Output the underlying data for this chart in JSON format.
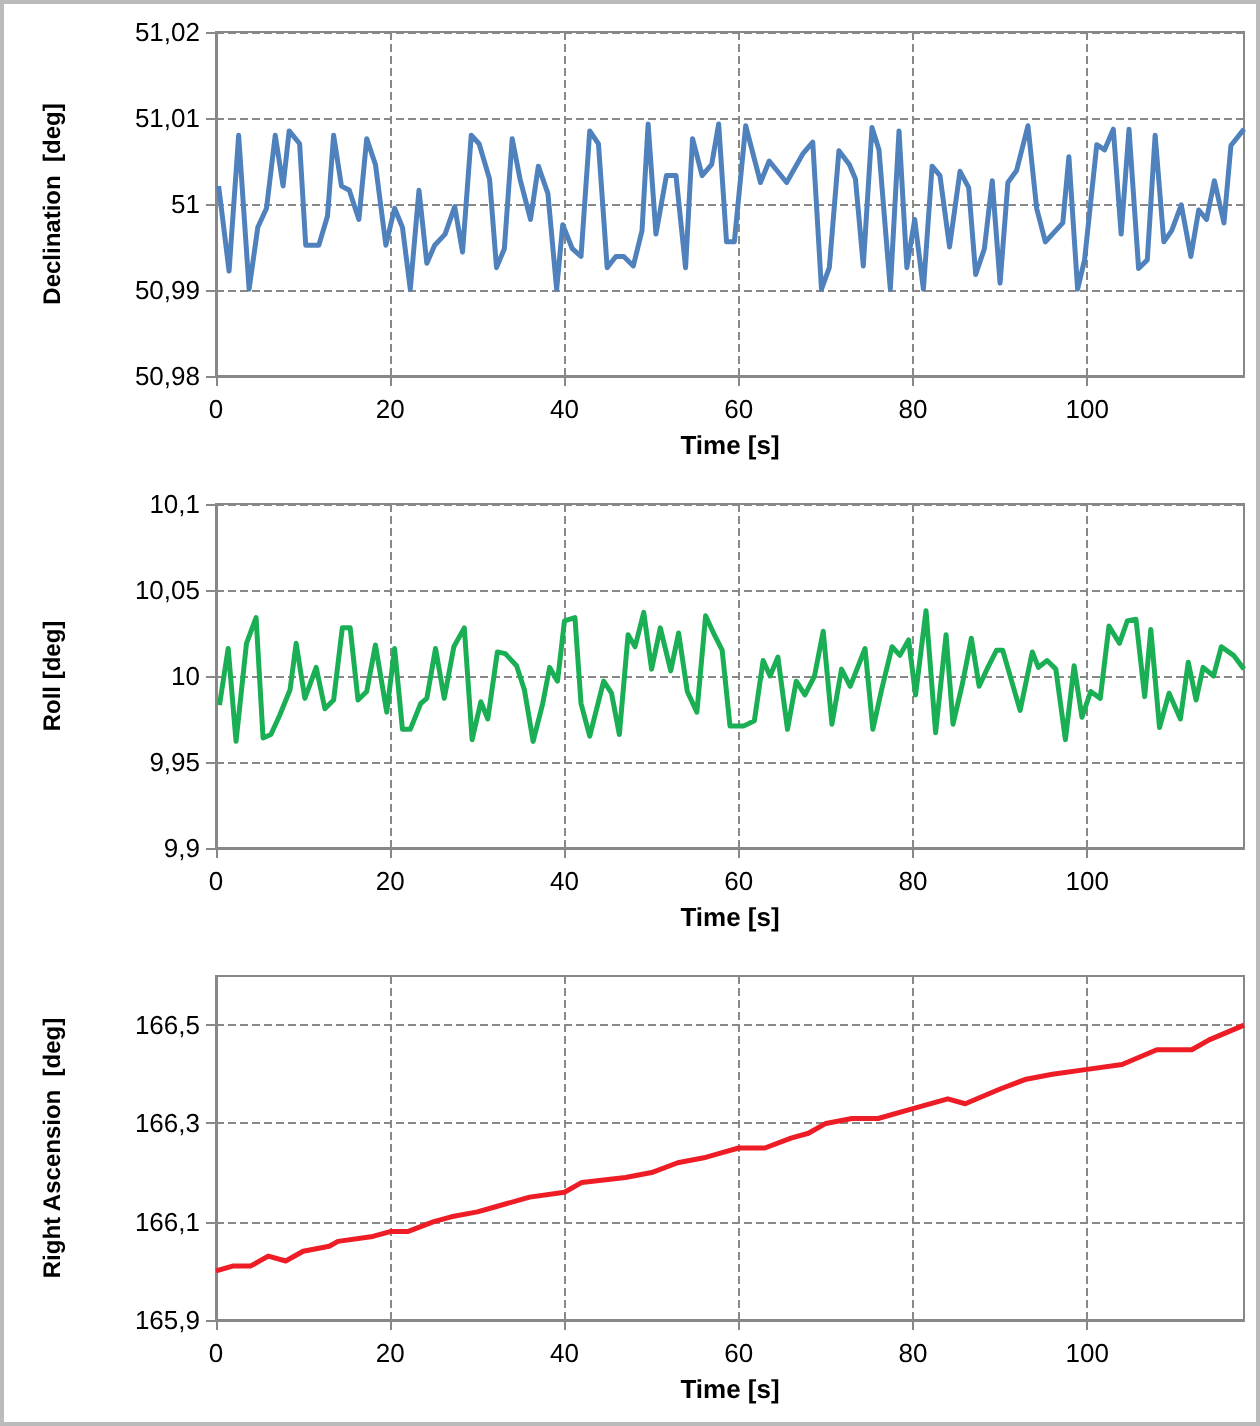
{
  "chart_data": [
    {
      "type": "line",
      "xlabel": "Time [s]",
      "ylabel": "Declination  [deg]",
      "grid": true,
      "marker": "none",
      "xlim": [
        0,
        118
      ],
      "xticks": [
        0,
        20,
        40,
        60,
        80,
        100
      ],
      "ylim": [
        50.98,
        51.02
      ],
      "yticks": [
        {
          "value": 50.98,
          "label": "50,98"
        },
        {
          "value": 50.99,
          "label": "50,99"
        },
        {
          "value": 51,
          "label": "51"
        },
        {
          "value": 51.01,
          "label": "51,01"
        },
        {
          "value": 51.02,
          "label": "51,02"
        }
      ],
      "x": [
        0.3,
        1.5,
        2.6,
        3.8,
        4.8,
        5.8,
        6.8,
        7.7,
        8.4,
        9.6,
        10.3,
        11.8,
        12.8,
        13.5,
        14.4,
        15.3,
        16.4,
        17.3,
        18.3,
        19.5,
        20.5,
        21.4,
        22.3,
        23.3,
        24.2,
        25.1,
        26.3,
        27.4,
        28.3,
        29.3,
        30.2,
        31.4,
        32.2,
        33.1,
        34.0,
        34.9,
        36.1,
        37.0,
        38.1,
        39.1,
        39.8,
        40.9,
        41.9,
        42.9,
        43.9,
        44.9,
        45.9,
        46.8,
        47.9,
        48.9,
        49.6,
        50.5,
        51.7,
        52.8,
        53.9,
        54.7,
        55.8,
        56.9,
        57.7,
        58.6,
        59.5,
        60.8,
        62.5,
        63.5,
        65.5,
        67.4,
        68.5,
        69.5,
        70.4,
        71.5,
        72.7,
        73.4,
        74.3,
        75.3,
        76.1,
        77.4,
        78.4,
        79.3,
        80.2,
        81.2,
        82.2,
        83.1,
        84.2,
        85.4,
        86.4,
        87.2,
        88.2,
        89.1,
        90.0,
        90.9,
        91.9,
        93.2,
        94.2,
        95.2,
        97.2,
        97.9,
        98.9,
        99.7,
        101.1,
        102.0,
        103.0,
        103.9,
        104.8,
        105.9,
        106.9,
        107.8,
        108.8,
        109.7,
        110.8,
        111.9,
        112.8,
        113.7,
        114.6,
        115.7,
        116.5,
        118.0
      ],
      "series": [
        {
          "color": "#4f81bd",
          "values": [
            51.0021,
            50.9922,
            51.008,
            50.9901,
            50.9973,
            50.9995,
            51.008,
            51.0021,
            51.0085,
            51.007,
            50.9952,
            50.9952,
            50.9986,
            51.008,
            51.0021,
            51.0016,
            50.9982,
            51.0076,
            51.0046,
            50.9952,
            50.9995,
            50.9973,
            50.9901,
            51.0016,
            50.9931,
            50.9952,
            50.9965,
            50.9997,
            50.9944,
            51.008,
            51.007,
            51.0029,
            50.9926,
            50.9948,
            51.0076,
            51.0029,
            50.9982,
            51.0044,
            51.0012,
            50.9901,
            50.9976,
            50.9948,
            50.9939,
            51.0085,
            51.007,
            50.9926,
            50.9939,
            50.9939,
            50.9928,
            50.9969,
            51.0093,
            50.9965,
            51.0033,
            51.0033,
            50.9926,
            51.0076,
            51.0033,
            51.0046,
            51.0093,
            50.9956,
            50.9956,
            51.0091,
            51.0025,
            51.005,
            51.0025,
            51.0059,
            51.0072,
            50.9901,
            50.9926,
            51.0062,
            51.0046,
            51.0029,
            50.9928,
            51.0089,
            51.0063,
            50.9901,
            51.0085,
            50.9926,
            50.9982,
            50.9901,
            51.0044,
            51.0033,
            50.995,
            51.0038,
            51.0019,
            50.9918,
            50.9948,
            51.0027,
            50.9908,
            51.0025,
            51.0039,
            51.0091,
            50.9995,
            50.9956,
            50.9978,
            51.0055,
            50.9901,
            50.9935,
            51.0069,
            51.0063,
            51.0087,
            50.9965,
            51.0087,
            50.9925,
            50.9935,
            51.008,
            50.9956,
            50.9969,
            50.9999,
            50.9939,
            50.9993,
            50.9982,
            51.0027,
            50.9978,
            51.0068,
            51.0087
          ]
        }
      ]
    },
    {
      "type": "line",
      "xlabel": "Time [s]",
      "ylabel": "Roll [deg]",
      "grid": true,
      "marker": "none",
      "xlim": [
        0,
        118
      ],
      "xticks": [
        0,
        20,
        40,
        60,
        80,
        100
      ],
      "ylim": [
        9.9,
        10.1
      ],
      "yticks": [
        {
          "value": 9.9,
          "label": "9,9"
        },
        {
          "value": 9.95,
          "label": "9,95"
        },
        {
          "value": 10,
          "label": "10"
        },
        {
          "value": 10.05,
          "label": "10,05"
        },
        {
          "value": 10.1,
          "label": "10,1"
        }
      ],
      "x": [
        0.4,
        1.4,
        2.3,
        3.5,
        4.6,
        5.4,
        6.3,
        7.3,
        8.5,
        9.2,
        10.2,
        11.5,
        12.5,
        13.5,
        14.5,
        15.4,
        16.3,
        17.3,
        18.3,
        19.6,
        20.5,
        21.4,
        22.3,
        23.5,
        24.2,
        25.2,
        26.2,
        27.3,
        28.5,
        29.4,
        30.4,
        31.2,
        32.3,
        33.2,
        34.5,
        35.4,
        36.4,
        37.5,
        38.3,
        39.2,
        40.0,
        41.2,
        41.9,
        42.9,
        44.5,
        45.4,
        46.3,
        47.3,
        48.1,
        49.1,
        50.0,
        51.0,
        52.2,
        53.1,
        54.1,
        55.2,
        56.2,
        57.2,
        58.1,
        59.0,
        60.6,
        61.8,
        62.8,
        63.6,
        64.5,
        65.6,
        66.6,
        67.6,
        68.7,
        69.7,
        70.7,
        71.8,
        72.8,
        74.5,
        75.4,
        76.4,
        77.6,
        78.5,
        79.5,
        80.3,
        81.5,
        82.6,
        83.8,
        84.6,
        85.7,
        86.7,
        87.6,
        88.6,
        89.6,
        90.3,
        92.3,
        93.7,
        94.4,
        95.4,
        96.4,
        97.5,
        98.5,
        99.4,
        100.4,
        101.5,
        102.5,
        103.7,
        104.6,
        105.6,
        106.6,
        107.3,
        108.3,
        109.4,
        110.7,
        111.6,
        112.5,
        113.3,
        114.5,
        115.4,
        116.8,
        118.0
      ],
      "series": [
        {
          "color": "#1aaf54",
          "values": [
            9.983,
            10.016,
            9.962,
            10.019,
            10.034,
            9.964,
            9.966,
            9.977,
            9.992,
            10.019,
            9.987,
            10.005,
            9.981,
            9.986,
            10.028,
            10.028,
            9.986,
            9.991,
            10.018,
            9.979,
            10.016,
            9.969,
            9.969,
            9.984,
            9.987,
            10.016,
            9.987,
            10.017,
            10.028,
            9.963,
            9.985,
            9.975,
            10.014,
            10.013,
            10.006,
            9.992,
            9.962,
            9.984,
            10.005,
            9.997,
            10.032,
            10.034,
            9.984,
            9.965,
            9.997,
            9.99,
            9.966,
            10.024,
            10.017,
            10.037,
            10.004,
            10.028,
            10.003,
            10.025,
            9.991,
            9.979,
            10.035,
            10.024,
            10.015,
            9.971,
            9.971,
            9.974,
            10.009,
            10,
            10.011,
            9.969,
            9.997,
            9.989,
            10,
            10.026,
            9.972,
            10.004,
            9.994,
            10.016,
            9.969,
            9.992,
            10.017,
            10.012,
            10.021,
            9.989,
            10.038,
            9.967,
            10.024,
            9.972,
            9.996,
            10.022,
            9.994,
            10.005,
            10.015,
            10.015,
            9.98,
            10.014,
            10.005,
            10.009,
            10.004,
            9.963,
            10.006,
            9.976,
            9.991,
            9.987,
            10.029,
            10.019,
            10.032,
            10.033,
            9.988,
            10.027,
            9.97,
            9.99,
            9.975,
            10.008,
            9.986,
            10.005,
            10,
            10.017,
            10.012,
            10.004
          ]
        }
      ]
    },
    {
      "type": "line",
      "xlabel": "Time [s]",
      "ylabel": "Right Ascension  [deg]",
      "grid": true,
      "marker": "none",
      "xlim": [
        0,
        118
      ],
      "xticks": [
        0,
        20,
        40,
        60,
        80,
        100
      ],
      "ylim": [
        165.9,
        166.6
      ],
      "yticks": [
        {
          "value": 165.9,
          "label": "165,9"
        },
        {
          "value": 166.1,
          "label": "166,1"
        },
        {
          "value": 166.3,
          "label": "166,3"
        },
        {
          "value": 166.5,
          "label": "166,5"
        }
      ],
      "x": [
        0,
        2,
        4,
        6,
        8,
        10,
        13,
        14,
        18,
        20,
        22,
        25,
        27,
        30,
        32,
        36,
        40,
        42,
        47,
        50,
        53,
        56,
        58,
        60,
        63,
        66,
        68,
        70,
        73,
        76,
        80,
        84,
        86,
        90,
        93,
        96,
        100,
        104,
        108,
        112,
        114,
        118
      ],
      "series": [
        {
          "color": "#ee1c25",
          "values": [
            166.0,
            166.01,
            166.01,
            166.03,
            166.02,
            166.04,
            166.05,
            166.06,
            166.07,
            166.08,
            166.08,
            166.1,
            166.11,
            166.12,
            166.13,
            166.15,
            166.16,
            166.18,
            166.19,
            166.2,
            166.22,
            166.23,
            166.24,
            166.25,
            166.25,
            166.27,
            166.28,
            166.3,
            166.31,
            166.31,
            166.33,
            166.35,
            166.34,
            166.37,
            166.39,
            166.4,
            166.41,
            166.42,
            166.45,
            166.45,
            166.47,
            166.5
          ]
        }
      ]
    }
  ]
}
